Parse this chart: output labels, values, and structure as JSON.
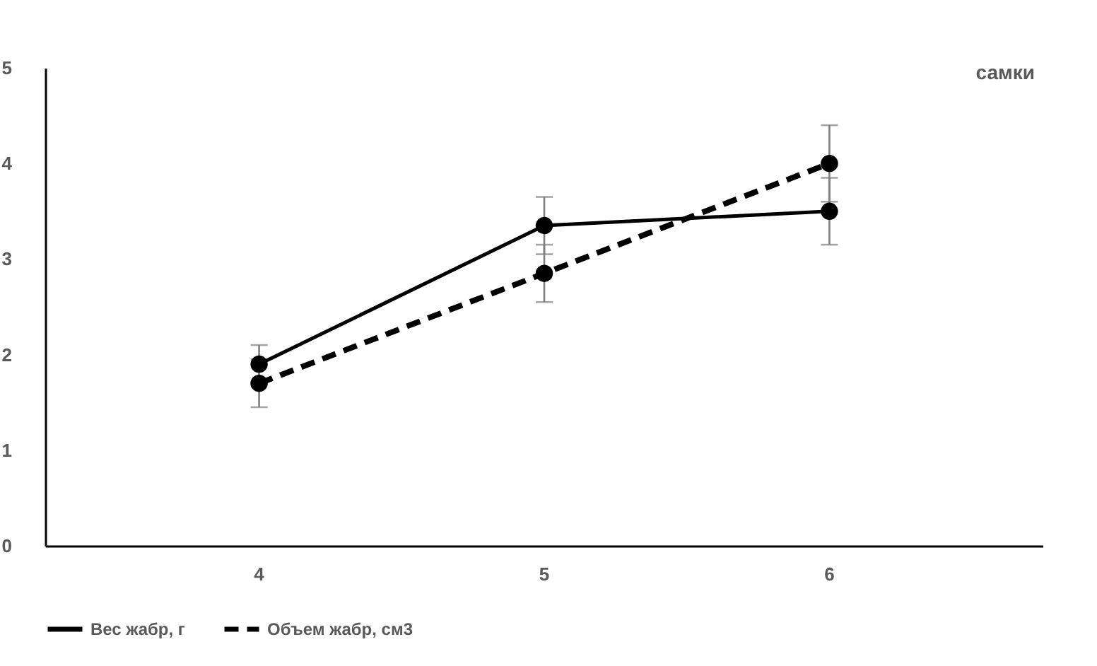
{
  "chart_data": {
    "type": "line",
    "categories": [
      "4",
      "5",
      "6"
    ],
    "series": [
      {
        "name": "Вес жабр, г",
        "color": "#000000",
        "line_style": "solid",
        "values": [
          1.9,
          3.35,
          3.5
        ],
        "errors": [
          0.2,
          0.3,
          0.35
        ]
      },
      {
        "name": "Объем жабр, см3",
        "color": "#000000",
        "line_style": "dashed",
        "values": [
          1.7,
          2.85,
          4.0
        ],
        "errors": [
          0.25,
          0.3,
          0.4
        ]
      }
    ],
    "ylim": [
      0,
      5
    ],
    "yticks": [
      0,
      1,
      2,
      3,
      4,
      5
    ],
    "grid": false,
    "legend": "bottom",
    "marker": "circle",
    "annotations": [
      "самки"
    ]
  }
}
